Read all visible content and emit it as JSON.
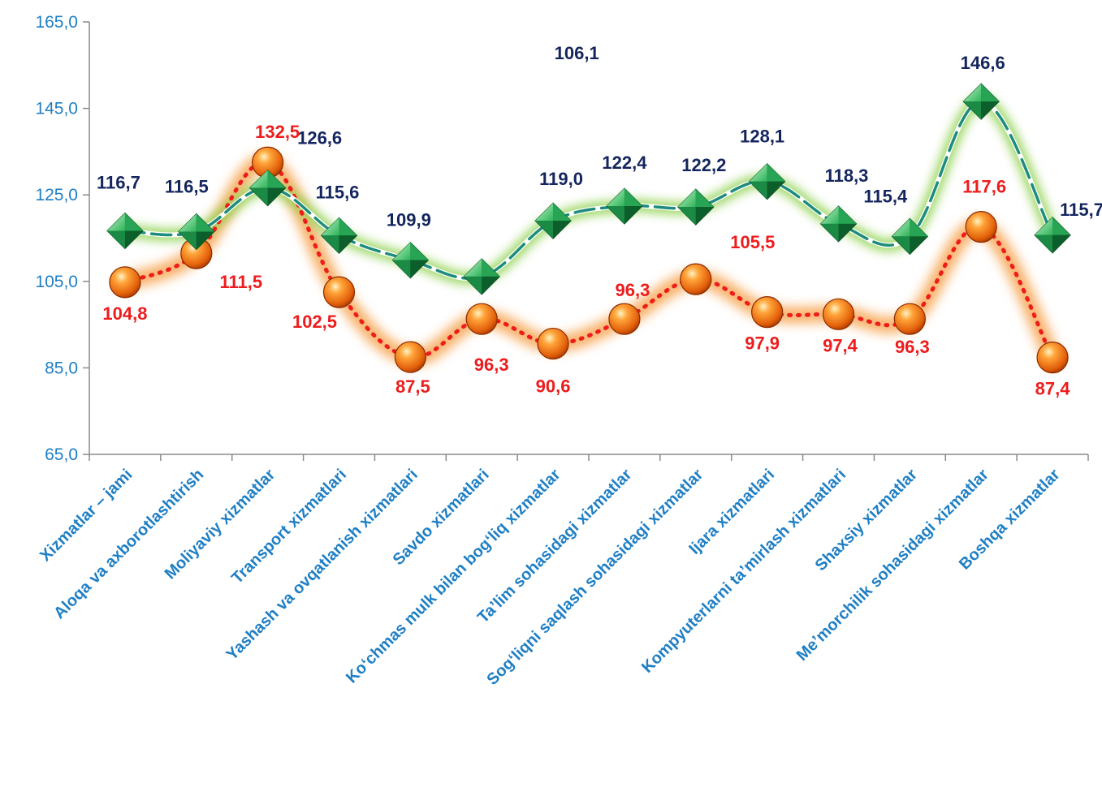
{
  "chart_data": {
    "type": "line",
    "categories": [
      "Xizmatlar – jami",
      "Aloqa va axborotlashtirish",
      "Moliyaviy xizmatlar",
      "Transport xizmatlari",
      "Yashash va ovqatlanish xizmatlari",
      "Savdo xizmatlari",
      "Koʻchmas mulk bilan bogʻliq xizmatlar",
      "Taʼlim sohasidagi xizmatlar",
      "Sogʻliqni saqlash sohasidagi xizmatlar",
      "Ijara xizmatlari",
      "Kompyuterlarni taʼmirlash xizmatlari",
      "Shaxsiy xizmatlar",
      "Meʼmorchilik sohasidagi xizmatlar",
      "Boshqa xizmatlar"
    ],
    "series": [
      {
        "values": [
          116.7,
          116.5,
          126.6,
          115.6,
          109.9,
          106.1,
          119.0,
          122.4,
          122.2,
          128.1,
          118.3,
          115.4,
          146.6,
          115.7
        ],
        "labels": [
          "116,7",
          "116,5",
          "126,6",
          "115,6",
          "109,9",
          "106,1",
          "119,0",
          "122,4",
          "122,2",
          "128,1",
          "118,3",
          "115,4",
          "146,6",
          "115,7"
        ],
        "line_color": "#1e8c7c",
        "line_style": "dashed",
        "glow_color": "#8fd14f",
        "marker": "diamond",
        "marker_color": "#1a9c4b",
        "label_color": "#14255e"
      },
      {
        "values": [
          104.8,
          111.5,
          132.5,
          102.5,
          87.5,
          96.3,
          90.6,
          96.3,
          105.5,
          97.9,
          97.4,
          96.3,
          117.6,
          87.4
        ],
        "labels": [
          "104,8",
          "111,5",
          "132,5",
          "102,5",
          "87,5",
          "96,3",
          "90,6",
          "96,3",
          "105,5",
          "97,9",
          "97,4",
          "96,3",
          "117,6",
          "87,4"
        ],
        "line_color": "#ee1c1c",
        "line_style": "dotted",
        "glow_color": "#f7a04a",
        "marker": "circle",
        "marker_color": "#f07a10",
        "label_color": "#ee1c1c"
      }
    ],
    "y_ticks": [
      "65,0",
      "85,0",
      "105,0",
      "125,0",
      "145,0",
      "165,0"
    ],
    "ylim": [
      65,
      165
    ],
    "grid": false,
    "legend": "none"
  }
}
